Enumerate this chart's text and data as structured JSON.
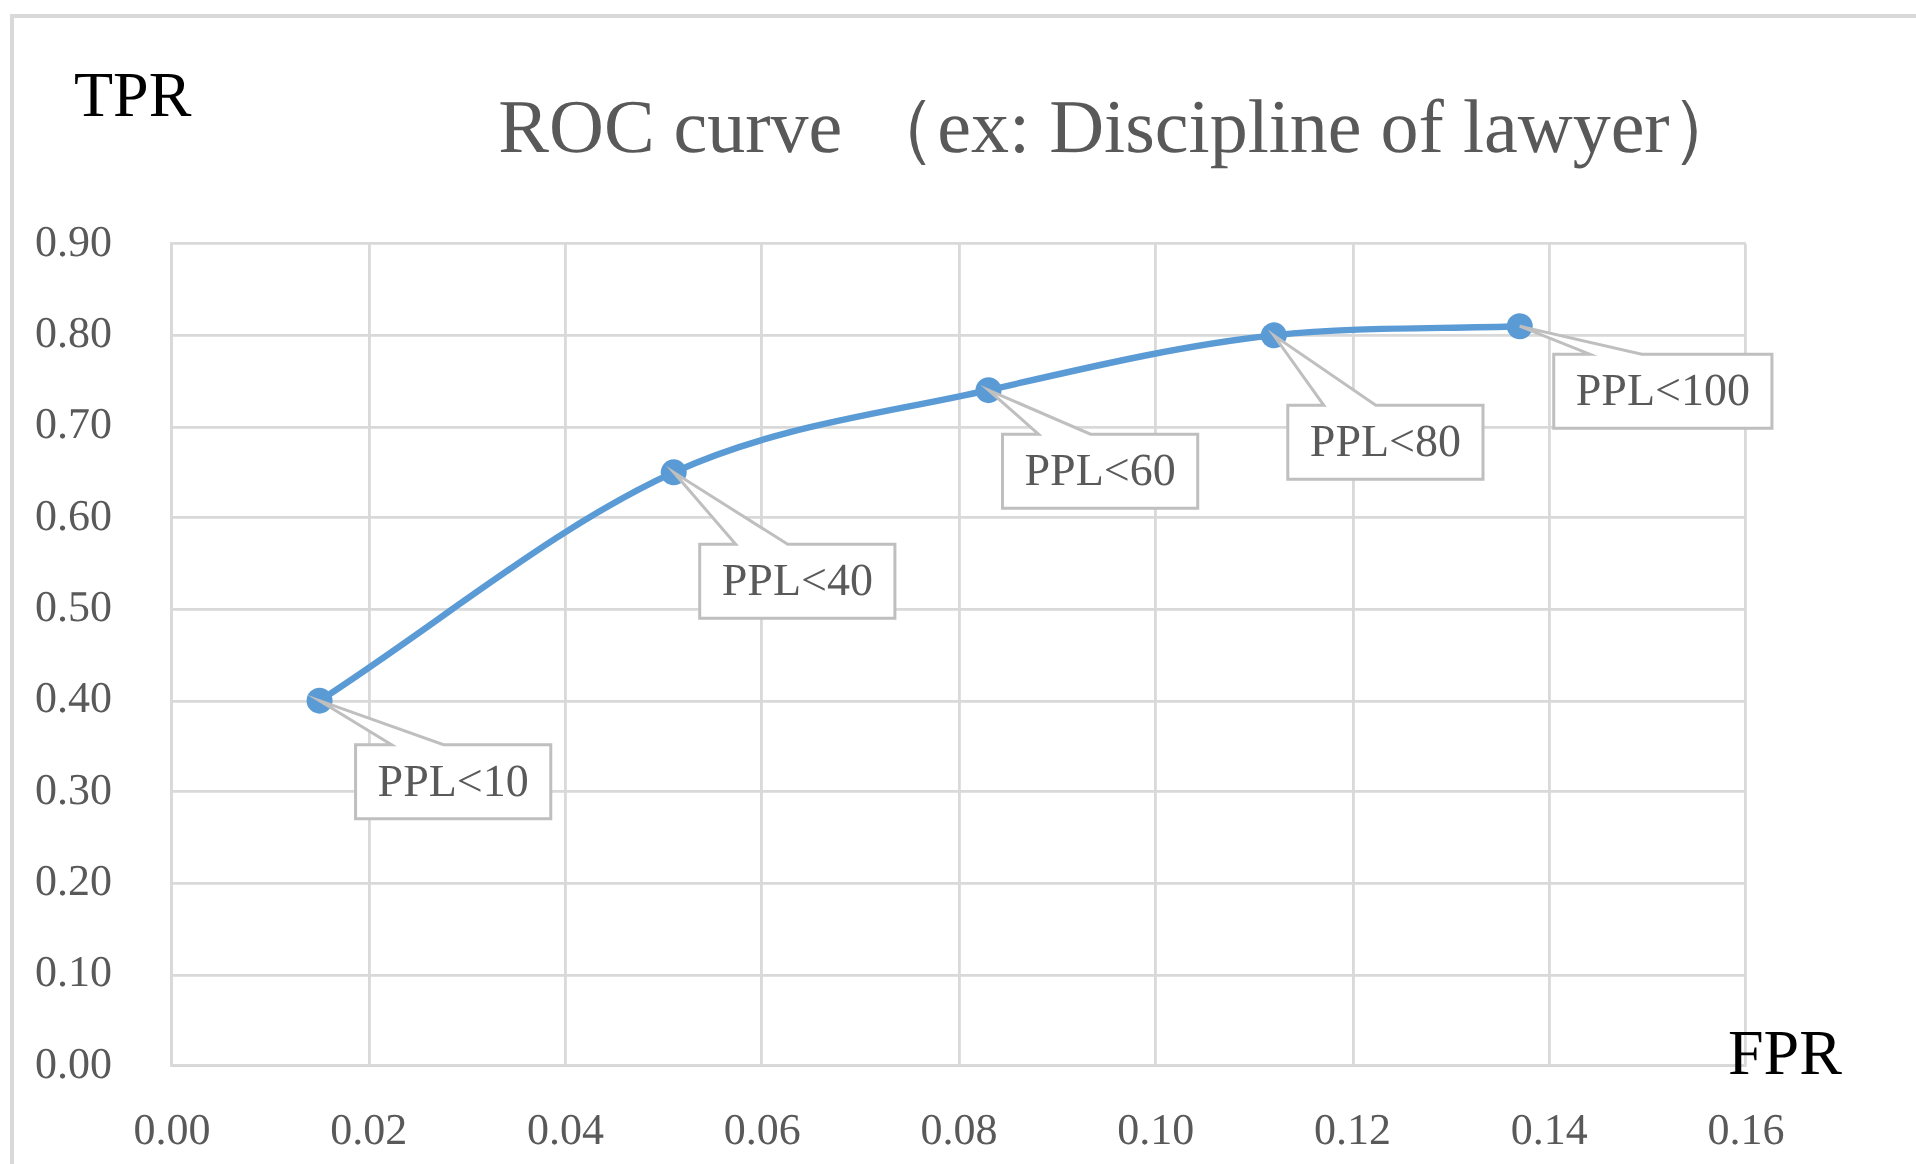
{
  "chart_data": {
    "type": "line",
    "title": "ROC curve （ex: Discipline of lawyer）",
    "xlabel": "FPR",
    "ylabel": "TPR",
    "x": [
      0.015,
      0.051,
      0.083,
      0.112,
      0.137
    ],
    "series": [
      {
        "color": "#5b9bd5",
        "values": [
          0.4,
          0.65,
          0.74,
          0.8,
          0.81
        ]
      }
    ],
    "xlim": [
      0,
      0.16
    ],
    "xticks": [
      {
        "value": 0,
        "label": "0.00"
      },
      {
        "value": 0.02,
        "label": "0.02"
      },
      {
        "value": 0.04,
        "label": "0.04"
      },
      {
        "value": 0.06,
        "label": "0.06"
      },
      {
        "value": 0.08,
        "label": "0.08"
      },
      {
        "value": 0.1,
        "label": "0.10"
      },
      {
        "value": 0.12,
        "label": "0.12"
      },
      {
        "value": 0.14,
        "label": "0.14"
      },
      {
        "value": 0.16,
        "label": "0.16"
      }
    ],
    "ylim": [
      0,
      0.9
    ],
    "yticks": [
      {
        "value": 0,
        "label": "0.00"
      },
      {
        "value": 0.1,
        "label": "0.10"
      },
      {
        "value": 0.2,
        "label": "0.20"
      },
      {
        "value": 0.3,
        "label": "0.30"
      },
      {
        "value": 0.4,
        "label": "0.40"
      },
      {
        "value": 0.5,
        "label": "0.50"
      },
      {
        "value": 0.6,
        "label": "0.60"
      },
      {
        "value": 0.7,
        "label": "0.70"
      },
      {
        "value": 0.8,
        "label": "0.80"
      },
      {
        "value": 0.9,
        "label": "0.90"
      }
    ],
    "grid": true,
    "marker": "circle",
    "line_style": "solid",
    "annotations": [
      {
        "text": "PPL<10",
        "x": 0.015,
        "y": 0.4
      },
      {
        "text": "PPL<40",
        "x": 0.051,
        "y": 0.65
      },
      {
        "text": "PPL<60",
        "x": 0.083,
        "y": 0.74
      },
      {
        "text": "PPL<80",
        "x": 0.112,
        "y": 0.8
      },
      {
        "text": "PPL<100",
        "x": 0.137,
        "y": 0.81
      }
    ]
  }
}
